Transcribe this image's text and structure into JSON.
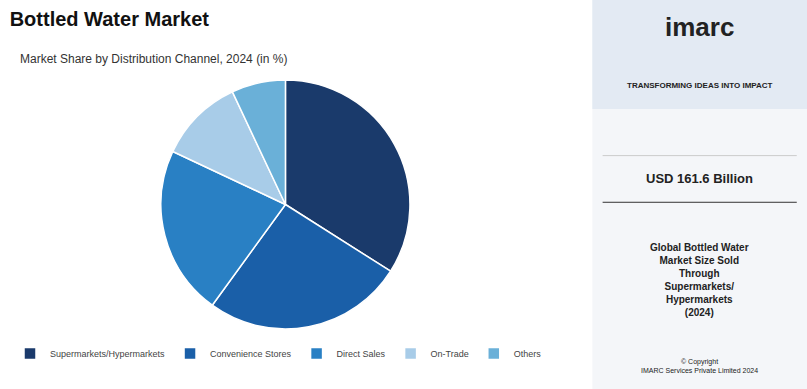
{
  "chart_data": {
    "type": "pie",
    "title": "Bottled Water Market",
    "subtitle": "Market Share by Distribution Channel, 2024 (in %)",
    "categories": [
      "Supermarkets/Hypermarkets",
      "Convenience Stores",
      "Direct Sales",
      "On-Trade",
      "Others"
    ],
    "values": [
      34,
      26,
      22,
      11,
      7
    ],
    "colors": [
      "#1a3a6b",
      "#1a5fa8",
      "#2980c4",
      "#a8cce8",
      "#6ab0d8"
    ],
    "legend": "bottom",
    "annotations": [
      "imarc",
      "TRANSFORMING IDEAS INTO IMPACT",
      "USD 161.6 Billion",
      "Global Bottled Water\nMarket Size Sold\nThrough\nSupermarkets/\nHypermarkets\n(2024)",
      "© Copyright\nIMARC Services Private Limited 2024"
    ]
  }
}
